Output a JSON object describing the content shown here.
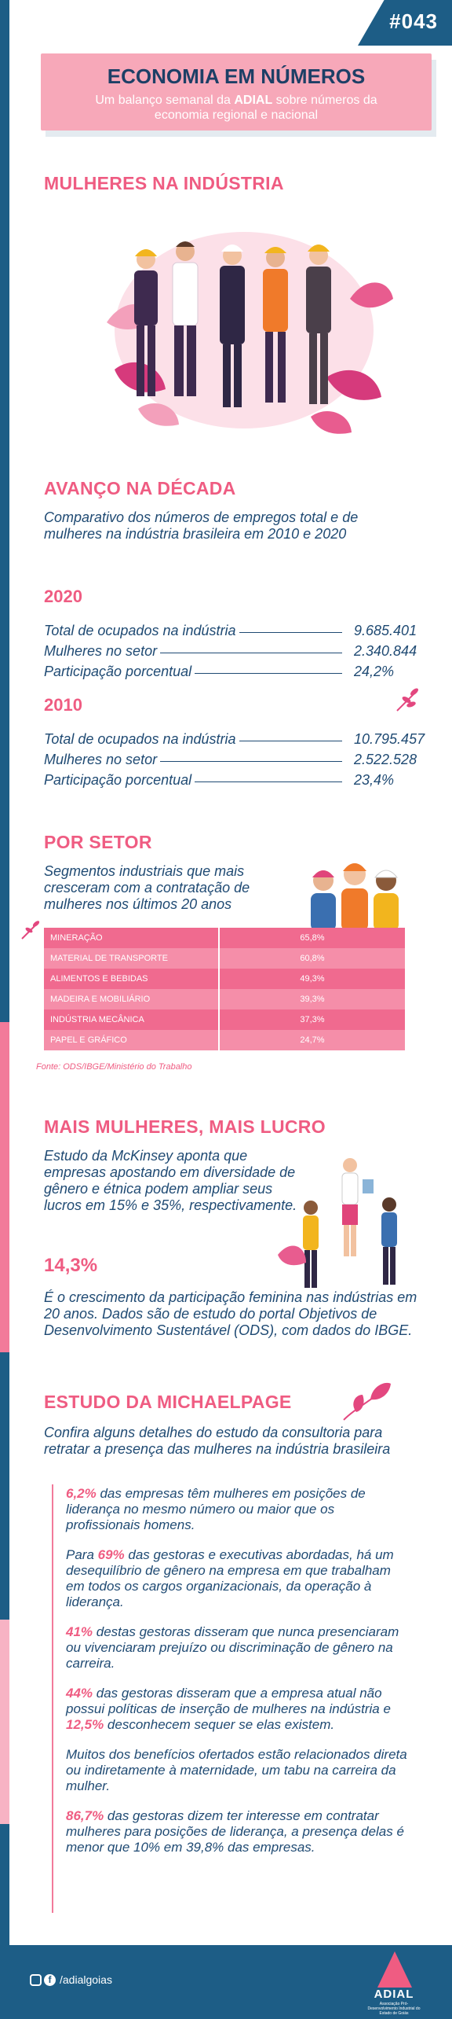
{
  "issue": "#043",
  "header": {
    "title": "ECONOMIA EM NÚMEROS",
    "subtitle_pre": "Um balanço semanal da ",
    "subtitle_brand": "ADIAL",
    "subtitle_post": " sobre números da economia regional e nacional"
  },
  "hero": {
    "title": "MULHERES NA INDÚSTRIA"
  },
  "decade": {
    "title": "AVANÇO NA DÉCADA",
    "subtitle": "Comparativo dos números de empregos total e de mulheres na indústria brasileira em 2010 e 2020",
    "blocks": [
      {
        "year": "2020",
        "rows": [
          {
            "label": "Total de ocupados na indústria",
            "value": "9.685.401"
          },
          {
            "label": "Mulheres no setor",
            "value": "2.340.844"
          },
          {
            "label": "Participação porcentual",
            "value": "24,2%"
          }
        ]
      },
      {
        "year": "2010",
        "rows": [
          {
            "label": "Total de ocupados na indústria",
            "value": "10.795.457"
          },
          {
            "label": "Mulheres no setor",
            "value": "2.522.528"
          },
          {
            "label": "Participação porcentual",
            "value": "23,4%"
          }
        ]
      }
    ]
  },
  "sector": {
    "title": "POR SETOR",
    "subtitle": "Segmentos industriais que mais cresceram com a contratação de mulheres nos últimos 20 anos",
    "rows": [
      {
        "name": "MINERAÇÃO",
        "value": "65,8%"
      },
      {
        "name": "MATERIAL DE TRANSPORTE",
        "value": "60,8%"
      },
      {
        "name": "ALIMENTOS E BEBIDAS",
        "value": "49,3%"
      },
      {
        "name": "MADEIRA E MOBILIÁRIO",
        "value": "39,3%"
      },
      {
        "name": "INDÚSTRIA MECÂNICA",
        "value": "37,3%"
      },
      {
        "name": "PAPEL E GRÁFICO",
        "value": "24,7%"
      }
    ],
    "source": "Fonte: ODS/IBGE/Ministério do Trabalho"
  },
  "profit": {
    "title": "MAIS MULHERES, MAIS LUCRO",
    "text": "Estudo da McKinsey aponta que empresas apostando em diversidade de gênero e étnica podem ampliar seus lucros em 15% e 35%, respectivamente.",
    "big": "14,3%",
    "big_text": "É o crescimento da participação feminina nas indústrias em 20 anos. Dados são de estudo do portal Objetivos de Desenvolvimento Sustentável (ODS), com dados do IBGE."
  },
  "study": {
    "title": "ESTUDO DA MICHAELPAGE",
    "subtitle": "Confira alguns detalhes do estudo da consultoria para retratar a presença das mulheres na indústria brasileira",
    "items": [
      {
        "pre": "",
        "bold": "6,2%",
        "post": " das empresas têm mulheres em posições de liderança no mesmo número ou maior que os profissionais homens."
      },
      {
        "pre": "Para ",
        "bold": "69%",
        "post": " das gestoras e executivas abordadas, há um desequilíbrio de gênero na empresa em que trabalham em todos os cargos organizacionais, da operação à liderança."
      },
      {
        "pre": "",
        "bold": "41%",
        "post": " destas gestoras disseram que nunca presenciaram ou vivenciaram prejuízo ou discriminação de gênero na carreira."
      },
      {
        "pre": "",
        "bold": "44%",
        "post": " das gestoras disseram que a empresa atual não possui políticas de inserção de mulheres na indústria e ",
        "bold2": "12,5%",
        "post2": " desconhecem sequer se elas existem."
      },
      {
        "pre": "Muitos dos benefícios ofertados estão relacionados direta ou indiretamente à maternidade, um tabu na carreira da mulher.",
        "bold": "",
        "post": ""
      },
      {
        "pre": "",
        "bold": "86,7%",
        "post": " das gestoras dizem ter interesse em contratar mulheres para posições de liderança, a presença delas é menor que 10% em 39,8% das empresas."
      }
    ]
  },
  "footer": {
    "handle": "/adialgoias",
    "logo": "ADIAL",
    "logo_small": "Associação Pró-Desenvolvimento Industrial do Estado de Goiás"
  },
  "colors": {
    "navy": "#1d5d86",
    "pink": "#ef5c82",
    "light_pink": "#f7a8b9",
    "text": "#1f4a73"
  }
}
